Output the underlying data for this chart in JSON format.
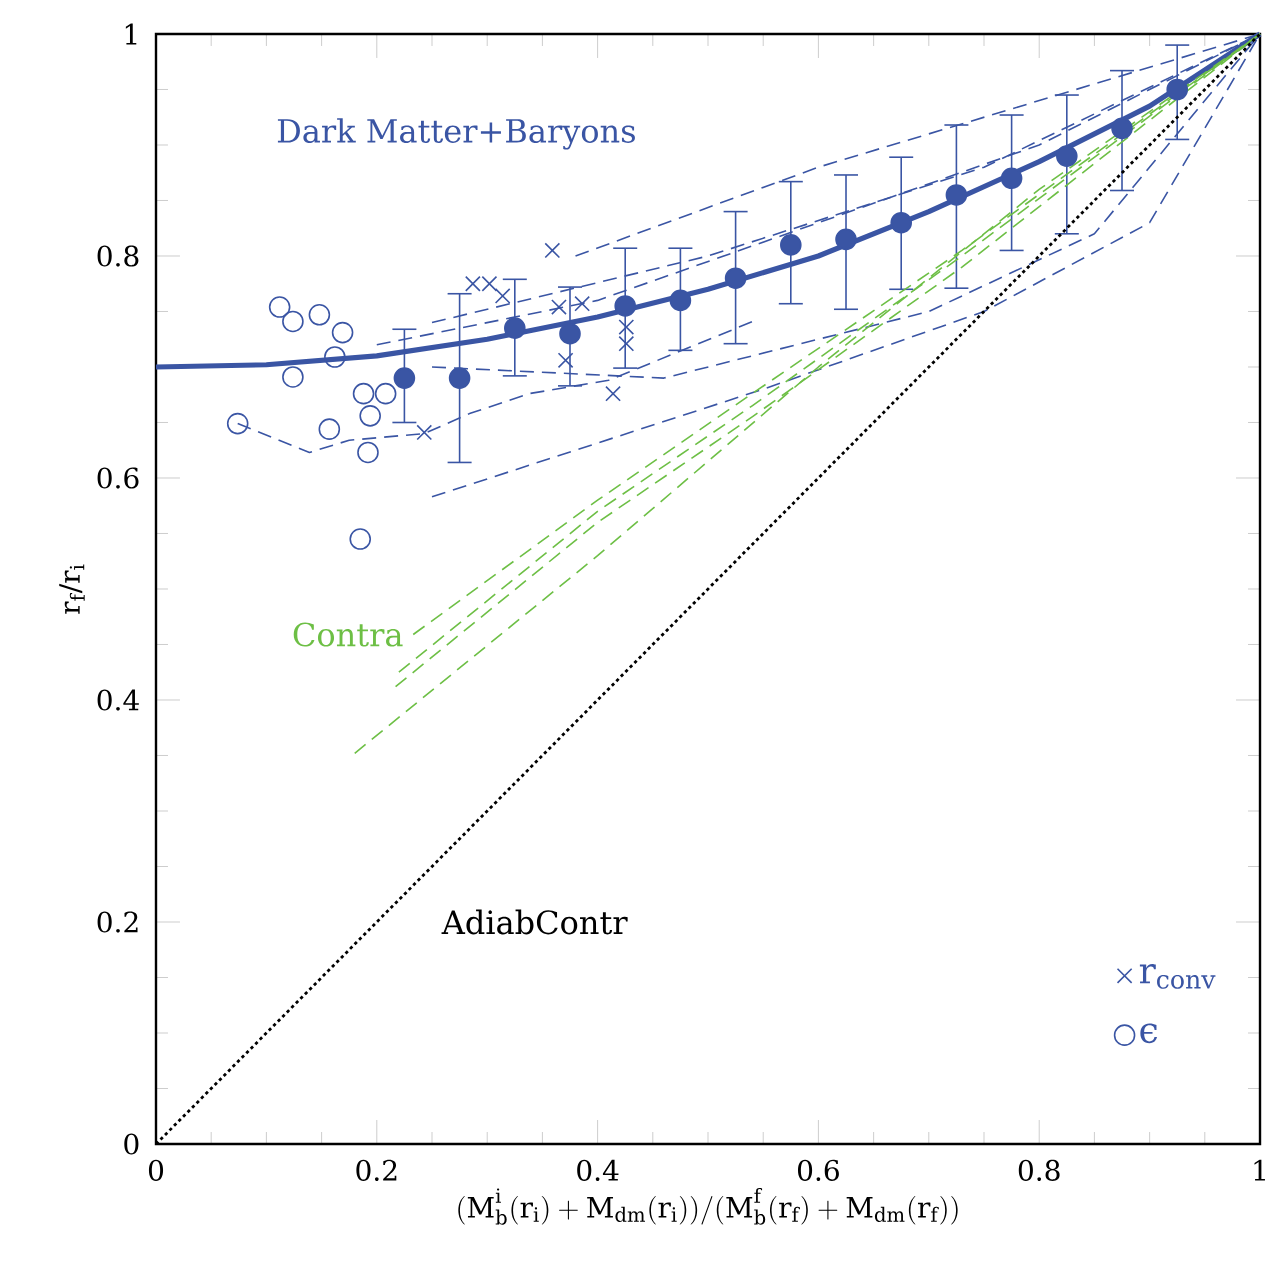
{
  "chart_data": {
    "type": "line",
    "xlabel": "(\\mathrm{M_b^i(r_i)+M_{dm}(r_i)})/(\\mathrm{M_b^f(r_f)+M_{dm}(r_f)})",
    "ylabel": "r$_{f}$/r$_{i}$",
    "xlim": [
      0,
      1
    ],
    "ylim": [
      0,
      1
    ],
    "xticks": [
      0,
      0.2,
      0.4,
      0.6,
      0.8,
      1
    ],
    "yticks": [
      0,
      0.2,
      0.4,
      0.6,
      0.8,
      1
    ],
    "legend": "bottom right",
    "grid": false,
    "annotations": [
      "Dark Matter+Baryons"
    ],
    "series": [
      {
        "color": "#3a55a4",
        "line_style": "solid",
        "marker": "none",
        "x": [
          0,
          0.1,
          0.2,
          0.3,
          0.4,
          0.5,
          0.6,
          0.7,
          0.8,
          0.9,
          1
        ],
        "values": [
          0.7,
          0.702,
          0.71,
          0.725,
          0.745,
          0.77,
          0.8,
          0.84,
          0.885,
          0.935,
          1
        ]
      },
      {
        "type": "scatter",
        "color": "#3a55a4",
        "marker": "circle",
        "x": [
          0.225,
          0.275,
          0.325,
          0.375,
          0.425,
          0.475,
          0.525,
          0.575,
          0.625,
          0.675,
          0.725,
          0.775,
          0.825,
          0.875,
          0.925
        ],
        "values": [
          0.69,
          0.69,
          0.735,
          0.73,
          0.755,
          0.76,
          0.78,
          0.81,
          0.815,
          0.83,
          0.855,
          0.87,
          0.89,
          0.915,
          0.95
        ],
        "errors": [
          [
            0.65,
            0.734
          ],
          [
            0.614,
            0.766
          ],
          [
            0.692,
            0.779
          ],
          [
            0.683,
            0.772
          ],
          [
            0.699,
            0.807
          ],
          [
            0.715,
            0.807
          ],
          [
            0.721,
            0.84
          ],
          [
            0.757,
            0.867
          ],
          [
            0.752,
            0.873
          ],
          [
            0.77,
            0.889
          ],
          [
            0.771,
            0.918
          ],
          [
            0.805,
            0.927
          ],
          [
            0.82,
            0.945
          ],
          [
            0.859,
            0.967
          ],
          [
            0.905,
            0.99
          ]
        ]
      },
      {
        "type": "scatter",
        "name": "r$_{conv}$",
        "color": "#3a55a4",
        "marker": "cross",
        "x": [
          0.243,
          0.287,
          0.302,
          0.314,
          0.359,
          0.365,
          0.386,
          0.371,
          0.426,
          0.426,
          0.414
        ],
        "values": [
          0.641,
          0.775,
          0.775,
          0.764,
          0.805,
          0.754,
          0.757,
          0.706,
          0.736,
          0.721,
          0.676
        ]
      },
      {
        "type": "scatter",
        "name": "ϵ",
        "color": "#3a55a4",
        "marker": "circle",
        "x": [
          0.112,
          0.124,
          0.148,
          0.169,
          0.162,
          0.124,
          0.188,
          0.208,
          0.194,
          0.157,
          0.192,
          0.074,
          0.185
        ],
        "values": [
          0.754,
          0.741,
          0.747,
          0.731,
          0.709,
          0.691,
          0.676,
          0.676,
          0.656,
          0.644,
          0.623,
          0.649,
          0.545
        ]
      },
      {
        "color": "#3a55a4",
        "line_style": "dashed",
        "marker": "none",
        "x": [
          0.074,
          0.139,
          0.175,
          0.243,
          0.284,
          0.338,
          0.41,
          0.543
        ],
        "values": [
          0.649,
          0.623,
          0.634,
          0.64,
          0.658,
          0.676,
          0.688,
          0.742
        ]
      },
      {
        "color": "#3a55a4",
        "line_style": "dashed",
        "marker": "none",
        "x": [
          0.38,
          0.6,
          0.8,
          1
        ],
        "values": [
          0.8,
          0.88,
          0.94,
          1
        ]
      },
      {
        "color": "#3a55a4",
        "line_style": "dashed",
        "marker": "none",
        "x": [
          0.2,
          0.4,
          0.6,
          0.8,
          1
        ],
        "values": [
          0.72,
          0.76,
          0.83,
          0.9,
          1
        ]
      },
      {
        "color": "#3a55a4",
        "line_style": "dashed",
        "marker": "none",
        "x": [
          0.25,
          0.46,
          0.7,
          0.85,
          1
        ],
        "values": [
          0.7,
          0.69,
          0.75,
          0.82,
          1
        ]
      },
      {
        "color": "#3a55a4",
        "line_style": "dashed",
        "marker": "none",
        "x": [
          0.25,
          0.55,
          0.75,
          0.9,
          1
        ],
        "values": [
          0.583,
          0.68,
          0.75,
          0.83,
          1
        ]
      },
      {
        "color": "#3a55a4",
        "line_style": "dashed",
        "marker": "none",
        "x": [
          0.25,
          0.5,
          0.75,
          1
        ],
        "values": [
          0.74,
          0.8,
          0.88,
          1
        ]
      },
      {
        "color": "#6dbf45",
        "line_style": "dashed",
        "marker": "none",
        "x": [
          0.18,
          0.4,
          0.6,
          0.8,
          1
        ],
        "values": [
          0.352,
          0.53,
          0.7,
          0.86,
          1
        ]
      },
      {
        "color": "#6dbf45",
        "line_style": "dashed",
        "marker": "none",
        "x": [
          0.217,
          0.4,
          0.54,
          0.73,
          1
        ],
        "values": [
          0.412,
          0.56,
          0.655,
          0.79,
          1
        ]
      },
      {
        "color": "#6dbf45",
        "line_style": "dashed",
        "marker": "none",
        "x": [
          0.22,
          0.4,
          0.54,
          0.73,
          1
        ],
        "values": [
          0.425,
          0.57,
          0.665,
          0.8,
          1
        ]
      },
      {
        "name": "Contra",
        "color": "#6dbf45",
        "line_style": "dashed",
        "marker": "none",
        "x": [
          0.233,
          0.4,
          0.54,
          0.73,
          1
        ],
        "values": [
          0.459,
          0.58,
          0.676,
          0.805,
          1
        ]
      },
      {
        "name": "AdiabContr",
        "color": "#000000",
        "line_style": "dotted",
        "marker": "none",
        "x": [
          0,
          1
        ],
        "values": [
          0,
          1
        ]
      }
    ]
  }
}
